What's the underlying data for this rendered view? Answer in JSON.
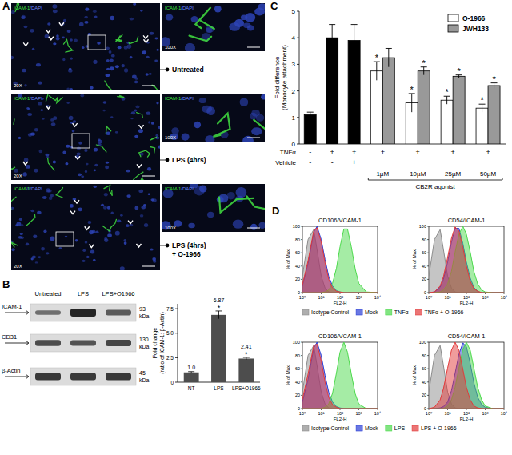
{
  "figure": {
    "panel_labels": [
      "A",
      "B",
      "C",
      "D"
    ],
    "microscopy": {
      "stain": [
        "ICAM-1",
        "/DAPI"
      ],
      "low_magnification": "20X",
      "high_magnification": "100X",
      "rows": [
        {
          "condition": [
            "Untreated"
          ]
        },
        {
          "condition": [
            "LPS (4hrs)"
          ]
        },
        {
          "condition": [
            "LPS (4hrs)",
            "+ O-1966"
          ]
        }
      ]
    },
    "blot": {
      "lanes": [
        "Untreated",
        "LPS",
        "LPS+O1966"
      ],
      "rows": [
        {
          "label": "ICAM-1",
          "size": "93",
          "unit": "kDa",
          "band_strength": [
            0.45,
            1,
            0.6
          ]
        },
        {
          "label": "CD31",
          "size": "130",
          "unit": "kDa",
          "band_strength": [
            0.7,
            0.65,
            0.75
          ]
        },
        {
          "label": "β-Actin",
          "size": "45",
          "unit": "kDa",
          "band_strength": [
            0.85,
            0.85,
            0.85
          ]
        }
      ]
    }
  },
  "chart_data": [
    {
      "type": "bar",
      "categories": [
        "NT",
        "LPS",
        "LPS+O1966"
      ],
      "values": [
        1.0,
        6.87,
        2.41
      ],
      "value_labels": [
        "1.0",
        "6.87",
        "2.41"
      ],
      "errors": [
        0.08,
        0.4,
        0.12
      ],
      "significance": [
        null,
        "*",
        "*"
      ],
      "color": "#4d4d4d",
      "y_label": [
        "Fold change",
        "(ratio of ICAM-1: β-Actin)"
      ],
      "ylim": [
        0,
        8
      ],
      "yticks": [
        0,
        2.5,
        {
          "value": 5,
          "label": "5.0"
        },
        7.5
      ],
      "data_labels": true
    },
    {
      "type": "bar",
      "categories": [
        null,
        null,
        null,
        "1µM",
        "10µM",
        "25µM",
        "50µM"
      ],
      "y_label": [
        "Fold difference",
        "(Monocyte attachment)"
      ],
      "ylim": [
        0,
        5
      ],
      "yticks": [
        0,
        1,
        2,
        3,
        4,
        5
      ],
      "legend": "top-right",
      "series": [
        {
          "color": "#000000",
          "values": [
            1.1,
            4.0,
            3.9,
            null,
            null,
            null,
            null
          ],
          "errors": [
            0.1,
            0.5,
            0.6,
            null,
            null,
            null,
            null
          ],
          "significance": [
            null,
            null,
            null,
            null,
            null,
            null,
            null
          ]
        },
        {
          "name": "O-1966",
          "color": "#ffffff",
          "values": [
            null,
            null,
            null,
            2.75,
            1.55,
            1.65,
            1.35
          ],
          "errors": [
            null,
            null,
            null,
            0.35,
            0.35,
            0.15,
            0.15
          ],
          "significance": [
            null,
            null,
            null,
            "*",
            "*",
            "*",
            "*"
          ]
        },
        {
          "name": "JWH133",
          "color": "#999999",
          "values": [
            null,
            null,
            null,
            3.25,
            2.75,
            2.55,
            2.2
          ],
          "errors": [
            null,
            null,
            null,
            0.35,
            0.15,
            0.05,
            0.1
          ],
          "significance": [
            null,
            null,
            null,
            null,
            "*",
            "*",
            "*"
          ]
        }
      ],
      "conditions": [
        {
          "label": "TNFα",
          "values": [
            "-",
            "+",
            "+",
            "+",
            "+",
            "+",
            "+"
          ]
        },
        {
          "label": "Vehicle",
          "values": [
            "-",
            "-",
            "+",
            null,
            null,
            null,
            null
          ]
        }
      ],
      "group_label": "CB2R agonist"
    },
    {
      "type": "area",
      "title": "CD106/VCAM-1",
      "x_label": "FL2-H",
      "y_label": "% of Max",
      "log": "x",
      "xlim": [
        1,
        10000
      ],
      "xticks": [
        {
          "value": 1,
          "label": "10⁰"
        },
        {
          "value": 10,
          "label": "10¹"
        },
        {
          "value": 100,
          "label": "10²"
        },
        {
          "value": 1000,
          "label": "10³"
        },
        {
          "value": 10000,
          "label": "10⁴"
        }
      ],
      "ylim": [
        0,
        100
      ],
      "yticks": [
        0,
        20,
        40,
        60,
        80,
        100
      ],
      "legend": "bottom",
      "x": [
        1,
        2,
        4,
        6,
        10,
        16,
        25,
        40,
        65,
        100,
        160,
        250,
        400,
        650,
        1000,
        2500,
        10000
      ],
      "series": [
        {
          "name": "Isotype Control",
          "color": "#8c8c8c",
          "values": [
            25,
            80,
            95,
            65,
            25,
            7,
            1,
            0,
            0,
            0,
            0,
            0,
            0,
            0,
            0,
            0,
            0
          ]
        },
        {
          "name": "Mock",
          "color": "#2b3fd6",
          "values": [
            10,
            44,
            91,
            100,
            80,
            50,
            25,
            10,
            3,
            1,
            0,
            0,
            0,
            0,
            0,
            0,
            0
          ]
        },
        {
          "name": "TNFα",
          "color": "#4cd94c",
          "values": [
            0,
            0,
            0,
            0,
            0,
            1,
            4,
            14,
            37,
            69,
            96,
            96,
            69,
            35,
            14,
            1,
            0
          ]
        },
        {
          "name": "TNFα + O-1966",
          "color": "#e23a3a",
          "values": [
            12,
            48,
            93,
            98,
            76,
            45,
            20,
            7,
            2,
            1,
            0,
            0,
            0,
            0,
            0,
            0,
            0
          ]
        }
      ]
    },
    {
      "type": "area",
      "title": "CD54/ICAM-1",
      "x_label": "FL2-H",
      "y_label": "% of Max",
      "log": "x",
      "xlim": [
        1,
        10000
      ],
      "xticks": [
        {
          "value": 1,
          "label": "10⁰"
        },
        {
          "value": 10,
          "label": "10¹"
        },
        {
          "value": 100,
          "label": "10²"
        },
        {
          "value": 1000,
          "label": "10³"
        },
        {
          "value": 10000,
          "label": "10⁴"
        }
      ],
      "ylim": [
        0,
        100
      ],
      "yticks": [
        0,
        20,
        40,
        60,
        80,
        100
      ],
      "x": [
        1,
        2,
        4,
        6,
        10,
        16,
        25,
        40,
        65,
        100,
        160,
        250,
        400,
        650,
        1000,
        2500,
        10000
      ],
      "series": [
        {
          "color": "#8c8c8c",
          "values": [
            25,
            80,
            95,
            65,
            25,
            7,
            1,
            0,
            0,
            0,
            0,
            0,
            0,
            0,
            0,
            0,
            0
          ]
        },
        {
          "color": "#2b3fd6",
          "values": [
            0,
            1,
            8,
            20,
            46,
            76,
            97,
            97,
            74,
            46,
            22,
            8,
            2,
            0,
            0,
            0,
            0
          ]
        },
        {
          "color": "#4cd94c",
          "values": [
            0,
            0,
            1,
            4,
            13,
            32,
            61,
            88,
            100,
            88,
            61,
            32,
            13,
            4,
            1,
            0,
            0
          ]
        },
        {
          "color": "#e23a3a",
          "values": [
            0,
            1,
            10,
            24,
            53,
            82,
            99,
            93,
            68,
            40,
            17,
            6,
            2,
            0,
            0,
            0,
            0
          ]
        }
      ]
    },
    {
      "type": "area",
      "title": "CD106/VCAM-1",
      "x_label": "FL2-H",
      "y_label": "% of Max",
      "log": "x",
      "xlim": [
        1,
        10000
      ],
      "xticks": [
        {
          "value": 1,
          "label": "10⁰"
        },
        {
          "value": 10,
          "label": "10¹"
        },
        {
          "value": 100,
          "label": "10²"
        },
        {
          "value": 1000,
          "label": "10³"
        },
        {
          "value": 10000,
          "label": "10⁴"
        }
      ],
      "ylim": [
        0,
        100
      ],
      "yticks": [
        0,
        20,
        40,
        60,
        80,
        100
      ],
      "legend": "bottom",
      "x": [
        1,
        2,
        4,
        6,
        10,
        16,
        25,
        40,
        65,
        100,
        160,
        250,
        400,
        650,
        1000,
        2500,
        10000
      ],
      "series": [
        {
          "name": "Isotype Control",
          "color": "#8c8c8c",
          "values": [
            25,
            80,
            95,
            65,
            25,
            7,
            1,
            0,
            0,
            0,
            0,
            0,
            0,
            0,
            0,
            0,
            0
          ]
        },
        {
          "name": "Mock",
          "color": "#2b3fd6",
          "values": [
            10,
            44,
            91,
            100,
            80,
            50,
            25,
            10,
            3,
            1,
            0,
            0,
            0,
            0,
            0,
            0,
            0
          ]
        },
        {
          "name": "LPS",
          "color": "#4cd94c",
          "values": [
            0,
            0,
            0,
            0,
            0,
            2,
            7,
            23,
            54,
            85,
            100,
            85,
            52,
            22,
            7,
            0,
            0
          ]
        },
        {
          "name": "LPS + O-1966",
          "color": "#e23a3a",
          "values": [
            14,
            52,
            95,
            97,
            72,
            40,
            17,
            6,
            2,
            0,
            0,
            0,
            0,
            0,
            0,
            0,
            0
          ]
        }
      ]
    },
    {
      "type": "area",
      "title": "CD54/ICAM-1",
      "x_label": "FL2-H",
      "y_label": "% of Max",
      "log": "x",
      "xlim": [
        1,
        10000
      ],
      "xticks": [
        {
          "value": 1,
          "label": "10⁰"
        },
        {
          "value": 10,
          "label": "10¹"
        },
        {
          "value": 100,
          "label": "10²"
        },
        {
          "value": 1000,
          "label": "10³"
        },
        {
          "value": 10000,
          "label": "10⁴"
        }
      ],
      "ylim": [
        0,
        100
      ],
      "yticks": [
        0,
        20,
        40,
        60,
        80,
        100
      ],
      "x": [
        1,
        2,
        4,
        6,
        10,
        16,
        25,
        40,
        65,
        100,
        160,
        250,
        400,
        650,
        1000,
        2500,
        10000
      ],
      "series": [
        {
          "color": "#8c8c8c",
          "values": [
            25,
            80,
            95,
            65,
            25,
            7,
            1,
            0,
            0,
            0,
            0,
            0,
            0,
            0,
            0,
            0,
            0
          ]
        },
        {
          "color": "#2b3fd6",
          "values": [
            0,
            0,
            1,
            3,
            10,
            27,
            53,
            82,
            99,
            93,
            68,
            39,
            17,
            6,
            2,
            0,
            0
          ]
        },
        {
          "color": "#4cd94c",
          "values": [
            0,
            0,
            0,
            0,
            4,
            13,
            32,
            61,
            89,
            100,
            88,
            61,
            32,
            13,
            4,
            0,
            0
          ]
        },
        {
          "color": "#e23a3a",
          "values": [
            0,
            2,
            13,
            30,
            61,
            88,
            100,
            88,
            59,
            32,
            13,
            4,
            1,
            0,
            0,
            0,
            0
          ]
        }
      ]
    }
  ]
}
